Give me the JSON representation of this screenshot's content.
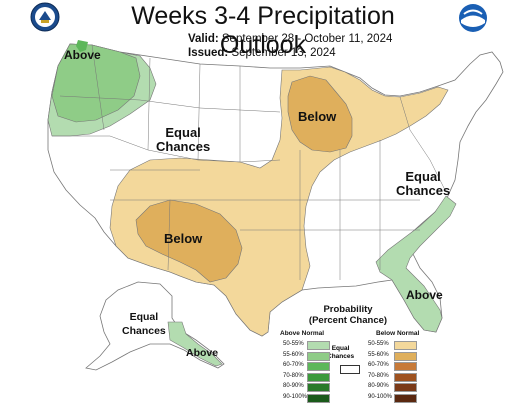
{
  "title": "Weeks 3-4 Precipitation Outlook",
  "valid_label": "Valid:",
  "valid_range": "September 28 - October 11, 2024",
  "issued_label": "Issued:",
  "issued_date": "September 13, 2024",
  "map_labels": {
    "above_nw": "Above",
    "equal_west": "Equal\nChances",
    "below_great_lakes": "Below",
    "equal_east": "Equal\nChances",
    "below_southwest": "Below",
    "above_florida": "Above",
    "equal_alaska": "Equal\nChances",
    "above_alaska": "Above"
  },
  "legend": {
    "title": "Probability\n(Percent Chance)",
    "above_header": "Above Normal",
    "below_header": "Below Normal",
    "equal_label": "Equal\nChances",
    "above_rows": [
      {
        "label": "50-55%",
        "color": "#b3dcb0"
      },
      {
        "label": "55-60%",
        "color": "#8fcc87"
      },
      {
        "label": "60-70%",
        "color": "#5db75a"
      },
      {
        "label": "70-80%",
        "color": "#3c9a3c"
      },
      {
        "label": "80-90%",
        "color": "#2a7a2a"
      },
      {
        "label": "90-100%",
        "color": "#1a5a1a"
      }
    ],
    "below_rows": [
      {
        "label": "50-55%",
        "color": "#f3d89b"
      },
      {
        "label": "55-60%",
        "color": "#dfaf5c"
      },
      {
        "label": "60-70%",
        "color": "#c77a39"
      },
      {
        "label": "70-80%",
        "color": "#9e5220"
      },
      {
        "label": "80-90%",
        "color": "#7a3a18"
      },
      {
        "label": "90-100%",
        "color": "#5a2810"
      }
    ]
  },
  "colors": {
    "above_light": "#b3dcb0",
    "above_med": "#8fcc87",
    "above_dark": "#5db75a",
    "below_light": "#f3d89b",
    "below_med": "#dfaf5c",
    "border": "#777777"
  }
}
